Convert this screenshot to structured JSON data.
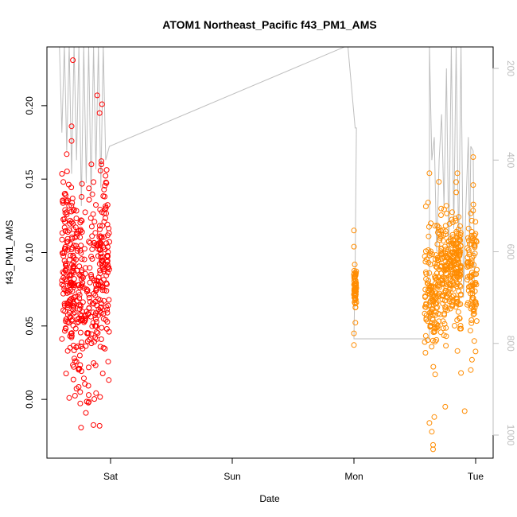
{
  "chart_data": {
    "type": "scatter",
    "title": "ATOM1 Northeast_Pacific f43_PM1_AMS",
    "xlabel": "Date",
    "ylabel": "f43_PM1_AMS",
    "x_ticks": [
      "Sat",
      "Sun",
      "Mon",
      "Tue"
    ],
    "y_ticks": [
      "0.00",
      "0.05",
      "0.10",
      "0.15",
      "0.20"
    ],
    "y_right_ticks": [
      "200",
      "400",
      "600",
      "800",
      "1000"
    ],
    "x_range_days": [
      -0.5,
      3.15
    ],
    "ylim": [
      -0.04,
      0.24
    ],
    "y_right_lim_reversed": [
      1030,
      150
    ],
    "grid": false,
    "colors": {
      "series1": "#ff0000",
      "series2": "#ff8c00",
      "altitude_line": "#bebebe",
      "frame": "#000000"
    },
    "series": [
      {
        "color_key": "series1",
        "x_span": [
          -0.42,
          -0.02
        ],
        "clusters": [
          {
            "center": -0.35,
            "width": 0.05,
            "count": 150,
            "mean": 0.09,
            "sd": 0.03
          },
          {
            "center": -0.27,
            "width": 0.04,
            "count": 80,
            "mean": 0.07,
            "sd": 0.04
          },
          {
            "center": -0.21,
            "width": 0.04,
            "count": 50,
            "mean": 0.06,
            "sd": 0.03
          },
          {
            "center": -0.13,
            "width": 0.05,
            "count": 90,
            "mean": 0.075,
            "sd": 0.035
          },
          {
            "center": -0.05,
            "width": 0.04,
            "count": 100,
            "mean": 0.09,
            "sd": 0.03
          }
        ],
        "notable_points": [
          [
            -0.31,
            0.231
          ],
          [
            -0.32,
            0.186
          ],
          [
            -0.32,
            0.176
          ],
          [
            -0.11,
            0.207
          ],
          [
            -0.07,
            0.201
          ],
          [
            -0.09,
            0.195
          ],
          [
            -0.09,
            -0.018
          ],
          [
            -0.36,
            0.167
          ],
          [
            -0.34,
            0.001
          ],
          [
            -0.25,
            0.005
          ],
          [
            -0.18,
            0.003
          ]
        ]
      },
      {
        "color_key": "series2",
        "x_span": [
          1.99,
          3.02
        ],
        "clusters": [
          {
            "center": 2.01,
            "width": 0.01,
            "count": 60,
            "mean": 0.075,
            "sd": 0.008
          },
          {
            "center": 2.63,
            "width": 0.05,
            "count": 110,
            "mean": 0.07,
            "sd": 0.02
          },
          {
            "center": 2.73,
            "width": 0.05,
            "count": 130,
            "mean": 0.085,
            "sd": 0.02
          },
          {
            "center": 2.83,
            "width": 0.05,
            "count": 160,
            "mean": 0.09,
            "sd": 0.02
          },
          {
            "center": 2.97,
            "width": 0.04,
            "count": 100,
            "mean": 0.085,
            "sd": 0.02
          }
        ],
        "notable_points": [
          [
            2.0,
            0.115
          ],
          [
            2.0,
            0.104
          ],
          [
            2.0,
            0.045
          ],
          [
            2.0,
            0.037
          ],
          [
            2.62,
            0.154
          ],
          [
            2.61,
            0.134
          ],
          [
            2.64,
            -0.022
          ],
          [
            2.65,
            -0.031
          ],
          [
            2.65,
            -0.034
          ],
          [
            2.66,
            -0.012
          ],
          [
            2.62,
            -0.016
          ],
          [
            2.75,
            -0.005
          ],
          [
            2.85,
            0.154
          ],
          [
            2.84,
            0.148
          ],
          [
            2.91,
            -0.008
          ],
          [
            2.98,
            0.165
          ],
          [
            2.98,
            0.146
          ],
          [
            2.97,
            0.027
          ],
          [
            2.88,
            0.018
          ],
          [
            2.96,
            0.02
          ]
        ]
      }
    ],
    "altitude_path": [
      [
        -0.42,
        150
      ],
      [
        -0.4,
        340
      ],
      [
        -0.38,
        150
      ],
      [
        -0.36,
        380
      ],
      [
        -0.34,
        150
      ],
      [
        -0.32,
        430
      ],
      [
        -0.3,
        150
      ],
      [
        -0.28,
        400
      ],
      [
        -0.26,
        150
      ],
      [
        -0.24,
        500
      ],
      [
        -0.22,
        150
      ],
      [
        -0.2,
        450
      ],
      [
        -0.18,
        150
      ],
      [
        -0.16,
        480
      ],
      [
        -0.14,
        150
      ],
      [
        -0.12,
        420
      ],
      [
        -0.1,
        150
      ],
      [
        -0.08,
        460
      ],
      [
        -0.06,
        150
      ],
      [
        -0.04,
        400
      ],
      [
        -0.01,
        370
      ],
      [
        1.95,
        150
      ],
      [
        2.01,
        330
      ],
      [
        2.02,
        330
      ],
      [
        2.01,
        630
      ],
      [
        2.0,
        790
      ],
      [
        2.62,
        790
      ],
      [
        2.62,
        150
      ],
      [
        2.64,
        400
      ],
      [
        2.66,
        350
      ],
      [
        2.68,
        600
      ],
      [
        2.7,
        400
      ],
      [
        2.72,
        300
      ],
      [
        2.74,
        500
      ],
      [
        2.76,
        200
      ],
      [
        2.78,
        600
      ],
      [
        2.8,
        150
      ],
      [
        2.82,
        550
      ],
      [
        2.84,
        150
      ],
      [
        2.86,
        600
      ],
      [
        2.88,
        150
      ],
      [
        2.9,
        700
      ],
      [
        2.92,
        500
      ],
      [
        2.94,
        350
      ],
      [
        2.95,
        600
      ],
      [
        2.96,
        370
      ],
      [
        2.98,
        380
      ],
      [
        2.99,
        700
      ]
    ]
  }
}
